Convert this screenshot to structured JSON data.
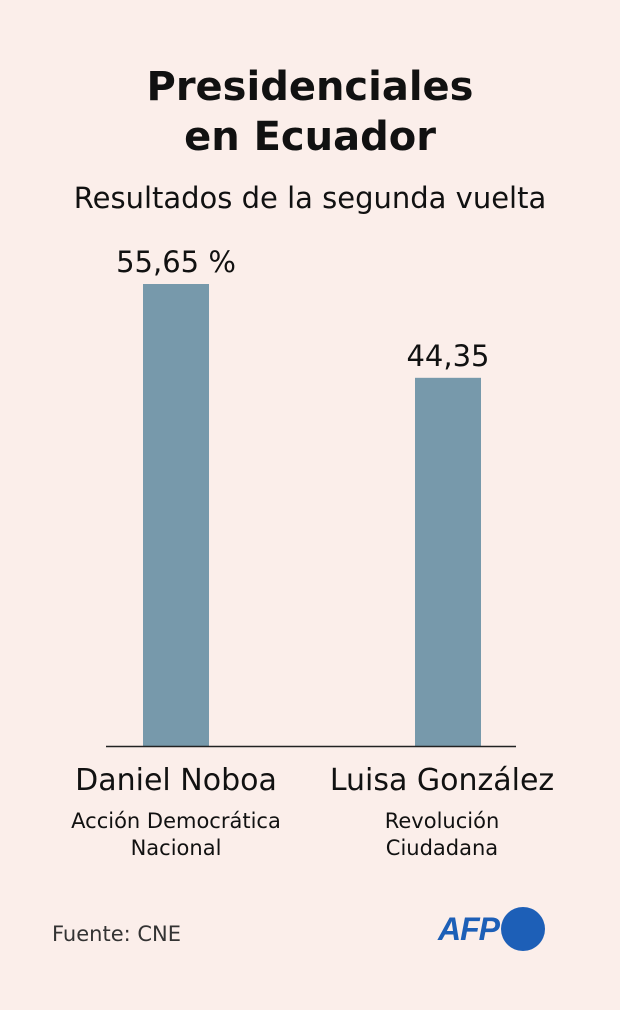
{
  "header": {
    "title_line1": "Presidenciales",
    "title_line2": "en Ecuador",
    "subtitle": "Resultados de la segunda vuelta"
  },
  "chart_data": {
    "type": "bar",
    "categories": [
      "Daniel Noboa",
      "Luisa González"
    ],
    "values": [
      55.65,
      44.35
    ],
    "value_labels": [
      "55,65 %",
      "44,35"
    ],
    "title": "Presidenciales en Ecuador",
    "subtitle": "Resultados de la segunda vuelta",
    "xlabel": "",
    "ylabel": "",
    "ylim": [
      0,
      55.65
    ],
    "grid": false,
    "bar_color": "#7799ab"
  },
  "candidates": [
    {
      "name": "Daniel Noboa",
      "party_line1": "Acción Democrática",
      "party_line2": "Nacional"
    },
    {
      "name": "Luisa González",
      "party_line1": "Revolución",
      "party_line2": "Ciudadana"
    }
  ],
  "footer": {
    "source": "Fuente: CNE",
    "logo_text": "AFP",
    "logo_color": "#1d5fb7"
  }
}
